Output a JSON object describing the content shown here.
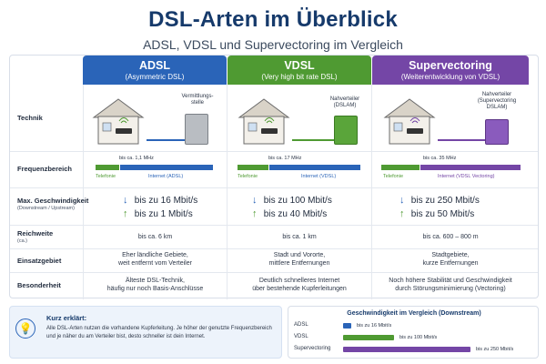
{
  "header": {
    "title": "DSL-Arten im Überblick",
    "subtitle": "ADSL, VDSL und Supervectoring im Vergleich"
  },
  "columns": [
    {
      "name": "ADSL",
      "sub": "(Asymmetric DSL)",
      "color": "#2a64b8",
      "distributor": "Vermittlungs-\nstelle"
    },
    {
      "name": "VDSL",
      "sub": "(Very high bit rate DSL)",
      "color": "#4f9a32",
      "distributor": "Nahverteiler\n(DSLAM)"
    },
    {
      "name": "Supervectoring",
      "sub": "(Weiterentwicklung von VDSL)",
      "color": "#7446a6",
      "distributor": "Nahverteiler\n(Supervectoring\nDSLAM)"
    }
  ],
  "rows": {
    "technik": "Technik",
    "frequenz": "Frequenzbereich",
    "speed": "Max. Geschwindigkeit",
    "speed_sub": "(Downstream / Upstream)",
    "reichweite": "Reichweite",
    "reichweite_sub": "(ca.)",
    "einsatz": "Einsatzgebiet",
    "besonderheit": "Besonderheit"
  },
  "frequency": [
    {
      "note": "bis ca. 1,1 MHz",
      "tel": "Telefonie",
      "inet": "Internet (ADSL)"
    },
    {
      "note": "bis ca. 17 MHz",
      "tel": "Telefonie",
      "inet": "Internet (VDSL)"
    },
    {
      "note": "bis ca. 35 MHz",
      "tel": "Telefonie",
      "inet": "Internet (VDSL Vectoring)"
    }
  ],
  "speeds": [
    {
      "down": "bis zu 16 Mbit/s",
      "up": "bis zu 1 Mbit/s"
    },
    {
      "down": "bis zu 100 Mbit/s",
      "up": "bis zu 40 Mbit/s"
    },
    {
      "down": "bis zu 250 Mbit/s",
      "up": "bis zu 50 Mbit/s"
    }
  ],
  "range": [
    "bis ca. 6 km",
    "bis ca. 1 km",
    "bis ca. 600 – 800 m"
  ],
  "usage": [
    "Eher ländliche Gebiete,\nweit entfernt vom Verteiler",
    "Stadt und Vororte,\nmittlere Entfernungen",
    "Stadtgebiete,\nkurze Entfernungen"
  ],
  "special": [
    "Älteste DSL-Technik,\nhäufig nur noch Basis-Anschlüsse",
    "Deutlich schnelleres Internet\nüber bestehende Kupferleitungen",
    "Noch höhere Stabilität und Geschwindigkeit\ndurch Störungsminimierung (Vectoring)"
  ],
  "kurz": {
    "title": "Kurz erklärt:",
    "text": "Alle DSL-Arten nutzen die vorhandene Kupferleitung. Je höher der genutzte Frequenzbereich und je näher du am Verteiler bist, desto schneller ist dein Internet."
  },
  "chart_data": {
    "type": "bar",
    "title": "Geschwindigkeit im Vergleich (Downstream)",
    "categories": [
      "ADSL",
      "VDSL",
      "Supervectoring"
    ],
    "values": [
      16,
      100,
      250
    ],
    "value_labels": [
      "bis zu 16 Mbit/s",
      "bis zu 100 Mbit/s",
      "bis zu 250 Mbit/s"
    ],
    "colors": [
      "#2a64b8",
      "#4f9a32",
      "#7446a6"
    ]
  }
}
